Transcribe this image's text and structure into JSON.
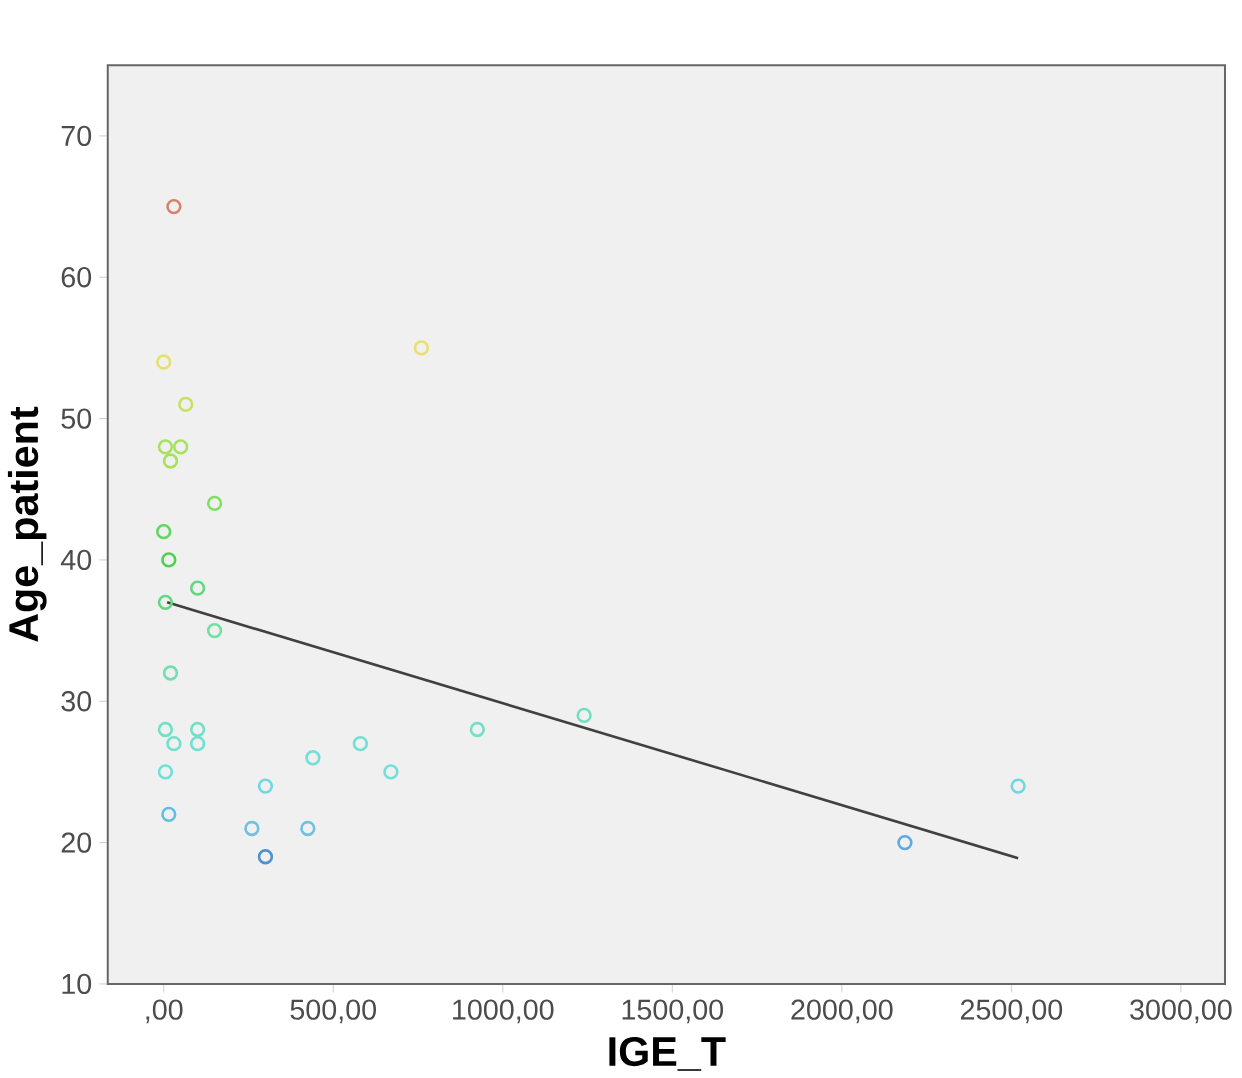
{
  "chart_data": {
    "type": "scatter",
    "xlabel": "IGE_T",
    "ylabel": "Age_patient",
    "xlim": [
      -165,
      3130
    ],
    "ylim": [
      10,
      75
    ],
    "xticks": [
      {
        "value": 0,
        "label": ",00"
      },
      {
        "value": 500,
        "label": "500,00"
      },
      {
        "value": 1000,
        "label": "1000,00"
      },
      {
        "value": 1500,
        "label": "1500,00"
      },
      {
        "value": 2000,
        "label": "2000,00"
      },
      {
        "value": 2500,
        "label": "2500,00"
      },
      {
        "value": 3000,
        "label": "3000,00"
      }
    ],
    "yticks": [
      10,
      20,
      30,
      40,
      50,
      60,
      70
    ],
    "marker": "circle",
    "series": [
      {
        "x": [
          30,
          0,
          760,
          65,
          5,
          50,
          20,
          150,
          0,
          15,
          100,
          5,
          150,
          20,
          5,
          100,
          30,
          100,
          5,
          300,
          440,
          580,
          670,
          925,
          1240,
          2520,
          2186,
          15,
          260,
          425,
          300
        ],
        "values": [
          65,
          54,
          55,
          51,
          48,
          48,
          47,
          44,
          42,
          40,
          38,
          37,
          35,
          32,
          28,
          28,
          27,
          27,
          25,
          24,
          26,
          27,
          25,
          28,
          29,
          24,
          20,
          22,
          21,
          21,
          19
        ],
        "colors": [
          "#d9826a",
          "#e6e070",
          "#e6e070",
          "#c8e060",
          "#a8e060",
          "#a8e060",
          "#a8e060",
          "#80e060",
          "#60d860",
          "#50d050",
          "#60d880",
          "#60d880",
          "#70e0a0",
          "#70e0b0",
          "#70e0c8",
          "#70e0c8",
          "#70e0d0",
          "#70e0d0",
          "#70e0d8",
          "#70d8e0",
          "#70e0d8",
          "#70e0d0",
          "#70e0d8",
          "#70e0c8",
          "#70e0c0",
          "#70d8e0",
          "#60a8e0",
          "#60c0e0",
          "#70c0e0",
          "#70c0e0",
          "#5090d0"
        ]
      },
      {
        "type": "line",
        "color": "#404040",
        "x": [
          10,
          2520
        ],
        "values": [
          37,
          18.9
        ],
        "marker": "none"
      }
    ]
  }
}
